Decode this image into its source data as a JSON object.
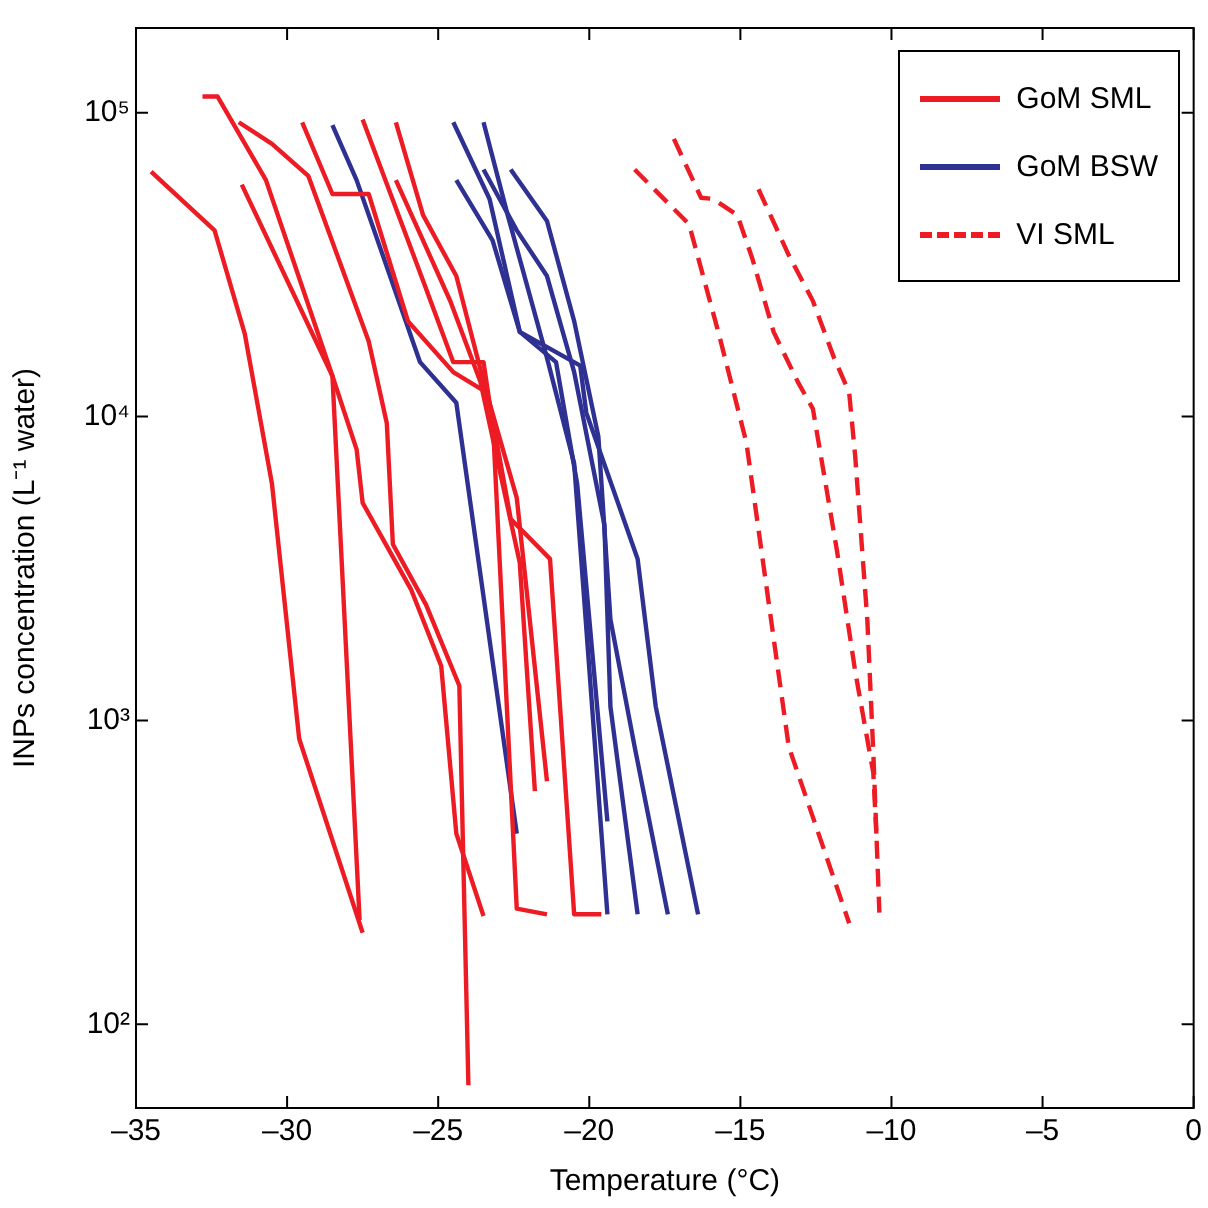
{
  "chart_data": {
    "type": "line",
    "xlabel": "Temperature (°C)",
    "ylabel": "INPs concentration (L⁻¹ water)",
    "log": "y",
    "grid": false,
    "legend": "top right",
    "marker": "none",
    "xlim": [
      -35,
      0
    ],
    "xticks": [
      {
        "value": -35,
        "label": "–35"
      },
      {
        "value": -30,
        "label": "–30"
      },
      {
        "value": -25,
        "label": "–25"
      },
      {
        "value": -20,
        "label": "–20"
      },
      {
        "value": -15,
        "label": "–15"
      },
      {
        "value": -10,
        "label": "–10"
      },
      {
        "value": -5,
        "label": "–5"
      },
      0
    ],
    "ylim": [
      53,
      190000
    ],
    "yticks": [
      {
        "value": 100,
        "label": "10²"
      },
      {
        "value": 1000,
        "label": "10³"
      },
      {
        "value": 10000,
        "label": "10⁴"
      },
      {
        "value": 100000,
        "label": "10⁵"
      }
    ],
    "series": [
      {
        "name": "GoM SML",
        "color": "#ed1c24",
        "x": [
          -34.5,
          -32.4,
          -31.4,
          -30.5,
          -29.6,
          -27.5
        ],
        "values": [
          64000,
          41000,
          18700,
          6000,
          870,
          200
        ]
      },
      {
        "color": "#ed1c24",
        "x": [
          -32.8,
          -32.3,
          -30.7,
          -28.5,
          -27.6
        ],
        "values": [
          113000,
          113000,
          60000,
          13600,
          220
        ]
      },
      {
        "color": "#ed1c24",
        "x": [
          -31.5,
          -28.5,
          -27.7,
          -27.5,
          -25.9,
          -24.9,
          -24.4,
          -23.5
        ],
        "values": [
          58000,
          13600,
          7800,
          5200,
          2700,
          1510,
          424,
          227
        ]
      },
      {
        "color": "#ed1c24",
        "x": [
          -31.6,
          -30.5,
          -29.3,
          -27.3,
          -26.7,
          -26.5,
          -25.4,
          -24.3,
          -24.0
        ],
        "values": [
          93000,
          79000,
          62000,
          17700,
          9500,
          3800,
          2400,
          1300,
          63
        ]
      },
      {
        "color": "#ed1c24",
        "x": [
          -29.5,
          -28.5,
          -27.3,
          -26.0,
          -24.5,
          -23.4,
          -22.4,
          -21.4
        ],
        "values": [
          93000,
          54000,
          54000,
          20600,
          14000,
          12000,
          5400,
          630
        ]
      },
      {
        "color": "#ed1c24",
        "x": [
          -27.5,
          -25.5,
          -24.5,
          -23.5,
          -23.3,
          -22.6,
          -21.3,
          -20.5,
          -19.6
        ],
        "values": [
          95000,
          28000,
          15100,
          15100,
          11100,
          4600,
          3400,
          230,
          230
        ]
      },
      {
        "color": "#ed1c24",
        "x": [
          -26.4,
          -25.5,
          -24.4,
          -23.2,
          -22.4,
          -21.4
        ],
        "values": [
          93000,
          46000,
          29000,
          10000,
          240,
          230
        ]
      },
      {
        "color": "#ed1c24",
        "x": [
          -26.4,
          -24.6,
          -23.6,
          -22.3,
          -21.8
        ],
        "values": [
          60000,
          24000,
          13000,
          3300,
          585
        ]
      },
      {
        "name": "GoM BSW",
        "color": "#2e3192",
        "x": [
          -28.5,
          -27.7,
          -25.6,
          -24.4,
          -22.4
        ],
        "values": [
          91000,
          60000,
          15100,
          11100,
          424
        ]
      },
      {
        "color": "#2e3192",
        "x": [
          -24.5,
          -23.3,
          -22.3,
          -21.1,
          -20.4,
          -19.4
        ],
        "values": [
          93000,
          52000,
          19000,
          15100,
          6000,
          465
        ]
      },
      {
        "color": "#2e3192",
        "x": [
          -23.5,
          -22.7,
          -21.4,
          -20.5,
          -19.4
        ],
        "values": [
          93000,
          46000,
          15600,
          7000,
          230
        ]
      },
      {
        "color": "#2e3192",
        "x": [
          -24.4,
          -23.2,
          -22.3,
          -20.3,
          -20.1,
          -18.4,
          -17.8,
          -16.4
        ],
        "values": [
          60000,
          38000,
          19000,
          14700,
          10300,
          3400,
          1110,
          230
        ]
      },
      {
        "color": "#2e3192",
        "x": [
          -23.5,
          -22.4,
          -21.4,
          -20.5,
          -19.5,
          -19.3,
          -18.4
        ],
        "values": [
          65000,
          41000,
          29000,
          14000,
          4400,
          1110,
          230
        ]
      },
      {
        "color": "#2e3192",
        "x": [
          -22.6,
          -21.4,
          -20.5,
          -19.7,
          -19.3,
          -18.5,
          -17.4
        ],
        "values": [
          65000,
          44000,
          20600,
          8600,
          2150,
          820,
          230
        ]
      },
      {
        "name": "VI SML",
        "color": "#ed1c24",
        "line_style": "dashed",
        "x": [
          -18.5,
          -16.7,
          -15.7,
          -14.8,
          -13.4,
          -11.4
        ],
        "values": [
          65000,
          43000,
          18500,
          8200,
          820,
          215
        ]
      },
      {
        "color": "#ed1c24",
        "line_style": "dashed",
        "x": [
          -17.2,
          -16.3,
          -15.9,
          -15.1,
          -14.6,
          -13.9,
          -13.1,
          -12.6,
          -11.8,
          -11.2,
          -10.6,
          -10.5
        ],
        "values": [
          82000,
          52500,
          52000,
          46000,
          33000,
          19000,
          13000,
          10600,
          3600,
          1450,
          670,
          424
        ]
      },
      {
        "color": "#ed1c24",
        "line_style": "dashed",
        "x": [
          -14.4,
          -13.4,
          -12.6,
          -11.9,
          -11.4,
          -11.2,
          -10.8,
          -10.6,
          -10.4
        ],
        "values": [
          56000,
          34000,
          24000,
          15600,
          12000,
          7400,
          2150,
          780,
          233
        ]
      }
    ]
  }
}
